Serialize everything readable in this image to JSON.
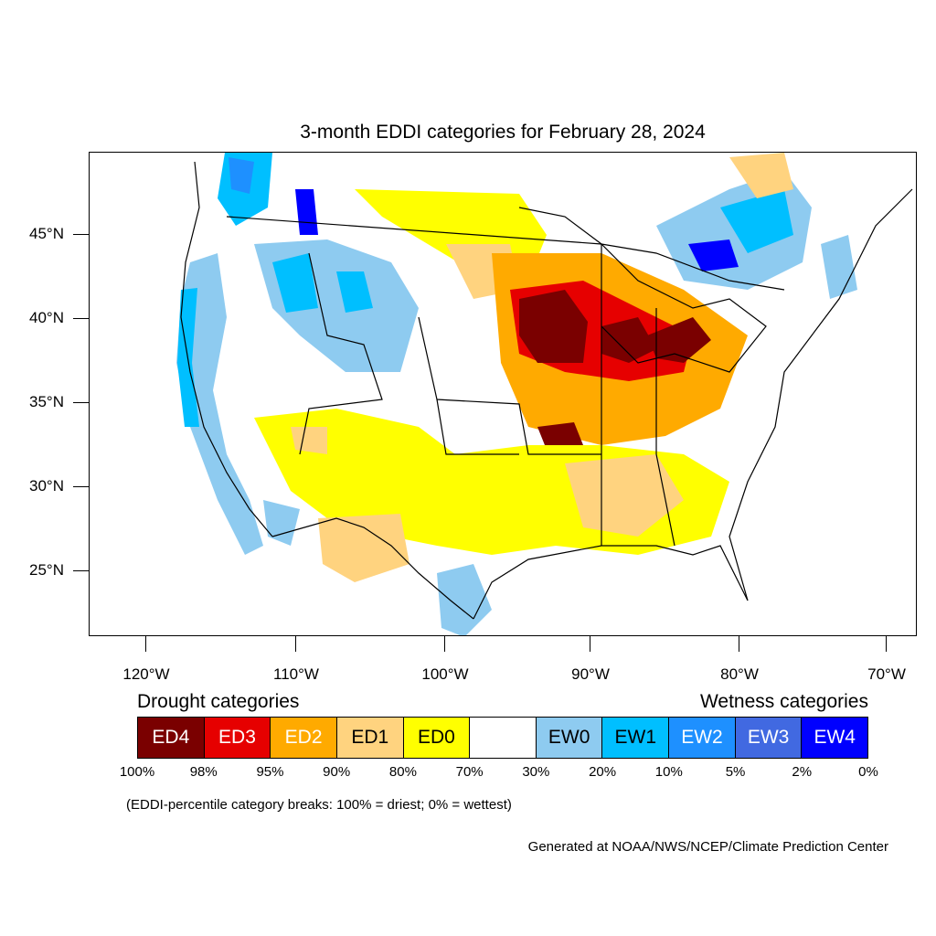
{
  "title": "3-month EDDI categories for February 28, 2024",
  "lat_labels": [
    "45°N",
    "40°N",
    "35°N",
    "30°N",
    "25°N"
  ],
  "lon_labels": [
    "120°W",
    "110°W",
    "100°W",
    "90°W",
    "80°W",
    "70°W"
  ],
  "legend": {
    "drought_heading": "Drought categories",
    "wetness_heading": "Wetness categories",
    "categories": [
      {
        "label": "ED4",
        "color": "#7a0000",
        "text_color": "#ffffff"
      },
      {
        "label": "ED3",
        "color": "#e60000",
        "text_color": "#ffffff"
      },
      {
        "label": "ED2",
        "color": "#ffaa00",
        "text_color": "#ffffff"
      },
      {
        "label": "ED1",
        "color": "#ffd37f",
        "text_color": "#000000"
      },
      {
        "label": "ED0",
        "color": "#ffff00",
        "text_color": "#000000"
      },
      {
        "label": "",
        "color": "#ffffff",
        "text_color": "#000000"
      },
      {
        "label": "EW0",
        "color": "#8ecbf0",
        "text_color": "#000000"
      },
      {
        "label": "EW1",
        "color": "#00bfff",
        "text_color": "#000000"
      },
      {
        "label": "EW2",
        "color": "#1e90ff",
        "text_color": "#ffffff"
      },
      {
        "label": "EW3",
        "color": "#4169e1",
        "text_color": "#ffffff"
      },
      {
        "label": "EW4",
        "color": "#0000ff",
        "text_color": "#ffffff"
      }
    ],
    "breaks": [
      "100%",
      "98%",
      "95%",
      "90%",
      "80%",
      "70%",
      "30%",
      "20%",
      "10%",
      "5%",
      "2%",
      "0%"
    ]
  },
  "note": "(EDDI-percentile category breaks: 100% = driest; 0% = wettest)",
  "credit": "Generated at NOAA/NWS/NCEP/Climate Prediction Center"
}
